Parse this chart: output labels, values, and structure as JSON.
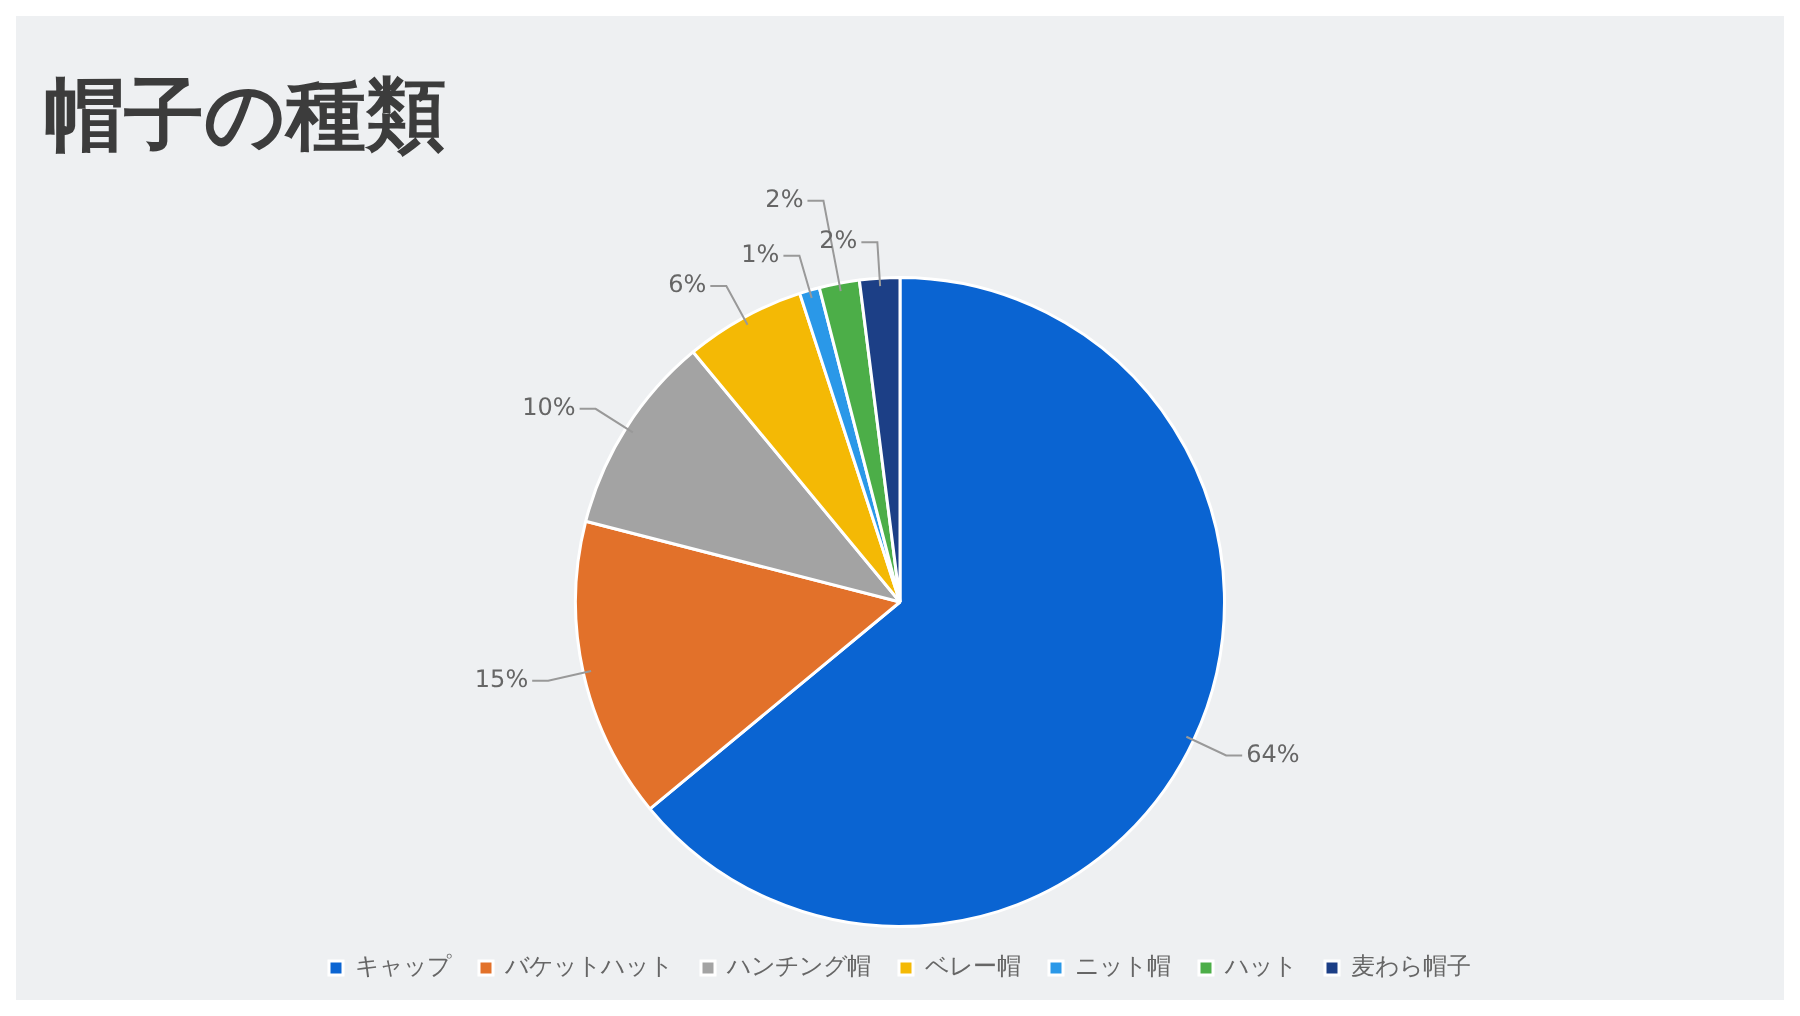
{
  "chart_data": {
    "type": "pie",
    "title": "帽子の種類",
    "categories": [
      "キャップ",
      "バケットハット",
      "ハンチング帽",
      "ベレー帽",
      "ニット帽",
      "ハット",
      "麦わら帽子"
    ],
    "values": [
      64,
      15,
      10,
      6,
      1,
      2,
      2
    ],
    "value_labels": [
      "64%",
      "15%",
      "10%",
      "6%",
      "1%",
      "2%",
      "2%"
    ],
    "colors": [
      "#0a64d2",
      "#e2712a",
      "#a3a3a3",
      "#f4b905",
      "#2a98e8",
      "#4cae48",
      "#1c3f86"
    ],
    "legend": "bottom"
  }
}
